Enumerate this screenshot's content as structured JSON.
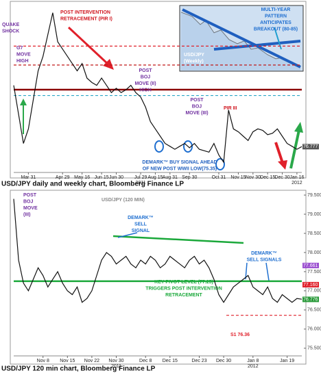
{
  "chart_data": [
    {
      "type": "line",
      "categories": [
        null,
        null,
        null,
        "Mar 31",
        null,
        null,
        null,
        null,
        null,
        null,
        "Apr 29",
        null,
        null,
        null,
        "May 16",
        null,
        null,
        null,
        "Jun 15",
        null,
        null,
        "Jun 30",
        null,
        null,
        null,
        null,
        "Jul 29",
        null,
        null,
        "Aug 15",
        null,
        null,
        "Aug 31",
        null,
        null,
        null,
        "Sep 30",
        null,
        null,
        null,
        null,
        null,
        "Oct 31",
        null,
        null,
        null,
        "Nov 15",
        null,
        null,
        "Nov 30",
        null,
        null,
        "Dec 15",
        null,
        null,
        "Dec 30",
        null,
        null,
        "Jan 16",
        null
      ],
      "values": [
        81,
        79,
        77,
        78,
        80,
        82,
        83,
        84.5,
        86,
        84,
        83.5,
        83,
        82.5,
        82,
        82.5,
        81.5,
        81.2,
        81,
        81.5,
        81,
        80.5,
        80.8,
        80.5,
        80.7,
        81,
        80.5,
        80.2,
        79.5,
        78.5,
        78,
        77.5,
        77,
        76.8,
        76.6,
        76.8,
        77,
        76.7,
        77,
        76.6,
        76.5,
        76.4,
        77,
        76.2,
        75.7,
        79.3,
        78,
        77.8,
        77.5,
        77.2,
        77.8,
        78,
        77.9,
        77.6,
        77.7,
        78,
        77.5,
        77,
        76.8,
        76.6,
        76.78
      ],
      "color": "#111111",
      "ylim": [
        75,
        86.5
      ],
      "year_labels": [
        "2011",
        "2012"
      ],
      "levels": [
        {
          "value": 83.7,
          "color": "#e0202a",
          "dash": true
        },
        {
          "value": 82.4,
          "color": "#c01818",
          "dash": true
        },
        {
          "value": 80.7,
          "color": "#8b0000",
          "dash": false
        },
        {
          "value": 80.3,
          "color": "#29a8c8",
          "dash": true
        }
      ],
      "price_tags": {
        "values": [
          76.777
        ],
        "value_labels": [
          "76.777"
        ],
        "colors": [
          "#555555"
        ]
      },
      "annotations": [
        {
          "lines": [
            "POST INTERVENTION",
            "RETRACEMENT (PIR I)"
          ],
          "color": "#d0141e"
        },
        {
          "lines": [
            "QUAKE",
            "SHOCK"
          ],
          "color": "#7030a0"
        },
        {
          "lines": [
            "G7",
            "MOVE",
            "HIGH"
          ],
          "color": "#7030a0"
        },
        {
          "lines": [
            "POST",
            "BOJ",
            "MOVE (II)",
            "HIGH"
          ],
          "color": "#7030a0"
        },
        {
          "lines": [
            "POST",
            "BOJ",
            "MOVE (III)"
          ],
          "color": "#7030a0"
        },
        {
          "lines": [
            "PIR III"
          ],
          "color": "#d0141e"
        },
        {
          "lines": [
            "DEMARK™ BUY SIGNAL AHEAD",
            "OF NEW POST WWII LOW(75.35)"
          ],
          "color": "#1f5fbf"
        },
        {
          "lines": [
            "MULTI-YEAR",
            "PATTERN",
            "ANTICIPATES",
            "BREAKOUT (80-85)"
          ],
          "color": "#1f6fd0"
        },
        {
          "lines": [
            "USD/JPY",
            "(Weekly)"
          ],
          "color": "#ffffff"
        }
      ]
    },
    {
      "type": "line",
      "title": "USD/JPY (120 MIN)",
      "categories": [
        null,
        null,
        null,
        null,
        null,
        null,
        "Nov 8",
        null,
        null,
        null,
        null,
        "Nov 15",
        null,
        null,
        null,
        null,
        "Nov 22",
        null,
        null,
        null,
        null,
        "Nov 30",
        null,
        null,
        null,
        null,
        null,
        "Dec 8",
        null,
        null,
        null,
        null,
        "Dec 15",
        null,
        null,
        null,
        null,
        null,
        "Dec 23",
        null,
        null,
        null,
        null,
        "Dec 30",
        null,
        null,
        null,
        null,
        null,
        "Jan 8",
        null,
        null,
        null,
        null,
        null,
        null,
        "Jan 19",
        null,
        null,
        null
      ],
      "values": [
        79.4,
        77.8,
        77.2,
        77.0,
        77.3,
        77.6,
        77.4,
        77.1,
        77.3,
        77.5,
        77.2,
        77.0,
        76.9,
        77.1,
        76.7,
        76.8,
        77.0,
        77.4,
        77.8,
        78.0,
        77.9,
        77.7,
        77.8,
        77.9,
        77.7,
        77.6,
        77.8,
        77.7,
        77.9,
        77.8,
        77.6,
        77.7,
        77.9,
        77.8,
        77.7,
        77.6,
        77.8,
        77.9,
        77.7,
        77.8,
        77.6,
        77.3,
        76.9,
        76.7,
        76.9,
        77.1,
        77.2,
        77.3,
        77.4,
        77.1,
        77.0,
        76.9,
        77.1,
        76.8,
        76.7,
        76.9,
        76.8,
        76.7,
        76.8,
        76.78
      ],
      "color": "#111111",
      "ylim": [
        75.3,
        79.59
      ],
      "yticks": [
        {
          "value": 79.5,
          "label": "79.500"
        },
        {
          "value": 79,
          "label": "79.000"
        },
        {
          "value": 78.5,
          "label": "78.500"
        },
        {
          "value": 78,
          "label": "78.000"
        },
        {
          "value": 77.5,
          "label": "77.500"
        },
        {
          "value": 77,
          "label": "77.000"
        },
        {
          "value": 76.5,
          "label": "76.500"
        },
        {
          "value": 76,
          "label": "76.000"
        },
        {
          "value": 75.5,
          "label": "75.500"
        }
      ],
      "year_labels": [
        "2011",
        "2012"
      ],
      "levels": [
        {
          "value": 77.25,
          "color": "#1aa83a",
          "dash": false
        },
        {
          "value": 76.36,
          "color": "#e0202a",
          "dash": true
        }
      ],
      "price_tags": {
        "values": [
          77.661,
          77.16,
          76.776
        ],
        "value_labels": [
          "77.661",
          "77.160",
          "76.776"
        ],
        "colors": [
          "#9b4fd0",
          "#e0202a",
          "#2a9a3a"
        ]
      },
      "annotations": [
        {
          "lines": [
            "POST",
            "BOJ",
            "MOVE",
            "(III)"
          ],
          "color": "#7030a0"
        },
        {
          "lines": [
            "DEMARK™",
            "SELL",
            "SIGNAL"
          ],
          "color": "#1f6fd0"
        },
        {
          "lines": [
            "DEMARK™",
            "SELL SIGNALS"
          ],
          "color": "#1f6fd0"
        },
        {
          "lines": [
            "KEY PIVOT LEVEL (77.25)",
            "TRIGGERS POST INTERVENTION",
            "RETRACEMENT"
          ],
          "color": "#1aa83a"
        },
        {
          "lines": [
            "S1 76.36"
          ],
          "color": "#e0202a"
        }
      ]
    }
  ],
  "captions": [
    "USD/JPY daily and weekly chart, Bloomberg Finance LP",
    "USD/JPY 120 min chart, Bloomberg Finance LP"
  ]
}
